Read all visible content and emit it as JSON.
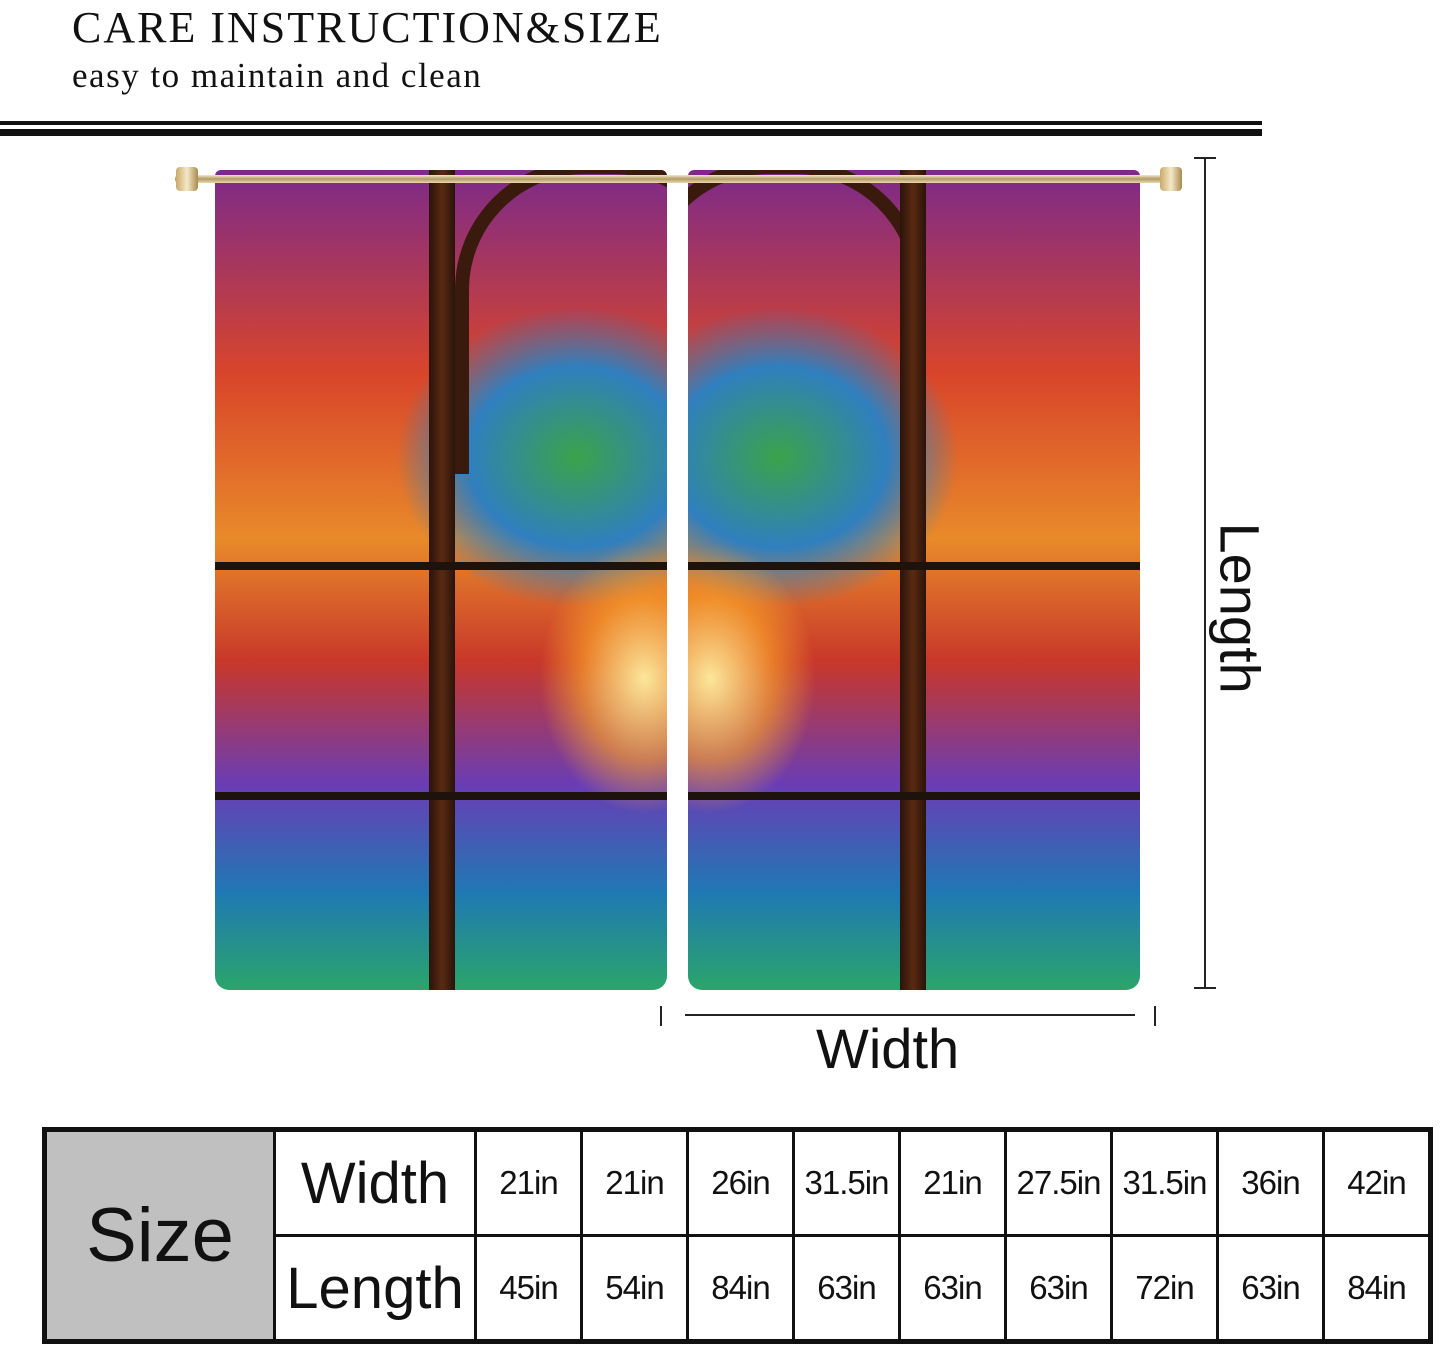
{
  "header": {
    "title": "CARE INSTRUCTION&SIZE",
    "subtitle": "easy to maintain and clean"
  },
  "diagram": {
    "length_label": "Length",
    "width_label": "Width"
  },
  "size_table": {
    "label": "Size",
    "rows": [
      {
        "label": "Width",
        "values": [
          "21in",
          "21in",
          "26in",
          "31.5in",
          "21in",
          "27.5in",
          "31.5in",
          "36in",
          "42in"
        ]
      },
      {
        "label": "Length",
        "values": [
          "45in",
          "54in",
          "84in",
          "63in",
          "63in",
          "63in",
          "72in",
          "63in",
          "84in"
        ]
      }
    ]
  }
}
